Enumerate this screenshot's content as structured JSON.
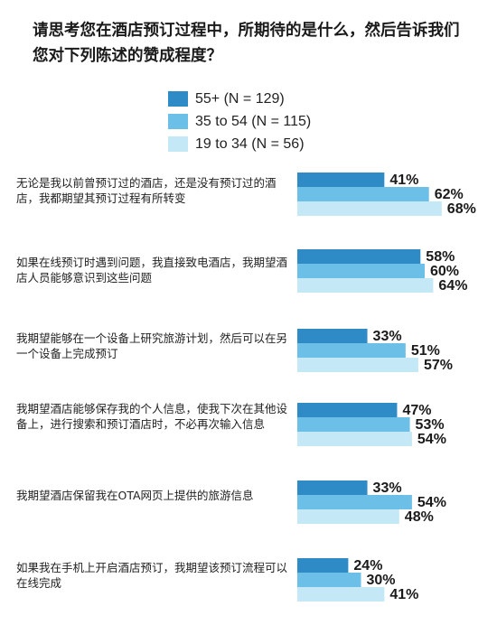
{
  "chart_data": {
    "type": "bar",
    "orientation": "horizontal",
    "title": "请思考您在酒店预订过程中，所期待的是什么，然后告诉我们您对下列陈述的赞成程度？",
    "categories": [
      "无论是我以前曾预订过的酒店，还是没有预订过的酒店，我都期望其预订过程有所转变",
      "如果在线预订时遇到问题，我直接致电酒店，我期望酒店人员能够意识到这些问题",
      "我期望能够在一个设备上研究旅游计划，然后可以在另一个设备上完成预订",
      "我期望酒店能够保存我的个人信息，使我下次在其他设备上，进行搜索和预订酒店时，不必再次输入信息",
      "我期望酒店保留我在OTA网页上提供的旅游信息",
      "如果我在手机上开启酒店预订，我期望该预订流程可以在线完成"
    ],
    "series": [
      {
        "name": "55+ (N = 129)",
        "color": "#2e8bc6",
        "values": [
          41,
          58,
          33,
          47,
          33,
          24
        ]
      },
      {
        "name": "35 to 54 (N = 115)",
        "color": "#6cbfe6",
        "values": [
          62,
          60,
          51,
          53,
          54,
          30
        ]
      },
      {
        "name": "19 to 34 (N = 56)",
        "color": "#c5e8f6",
        "values": [
          68,
          64,
          57,
          54,
          48,
          41
        ]
      }
    ],
    "value_labels": [
      [
        "41%",
        "62%",
        "68%"
      ],
      [
        "58%",
        "60%",
        "64%"
      ],
      [
        "33%",
        "51%",
        "57%"
      ],
      [
        "47%",
        "53%",
        "54%"
      ],
      [
        "33%",
        "54%",
        "48%"
      ],
      [
        "24%",
        "30%",
        "41%"
      ]
    ],
    "legend_position": "top",
    "grid": false,
    "xlim": [
      0,
      100
    ]
  }
}
